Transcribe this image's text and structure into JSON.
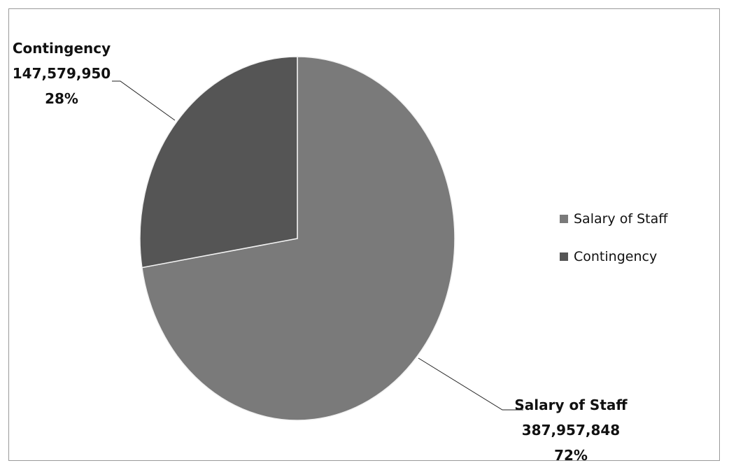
{
  "chart_data": {
    "type": "pie",
    "title": "",
    "categories": [
      "Salary of Staff",
      "Contingency"
    ],
    "values": [
      387957848,
      147579950
    ],
    "value_labels": [
      "387,957,848",
      "147,579,950"
    ],
    "percent_labels": [
      "72%",
      "28%"
    ],
    "colors": [
      "#7a7a7a",
      "#555555"
    ],
    "legend": {
      "placement": "right",
      "entries": [
        "Salary of Staff",
        "Contingency"
      ]
    }
  }
}
